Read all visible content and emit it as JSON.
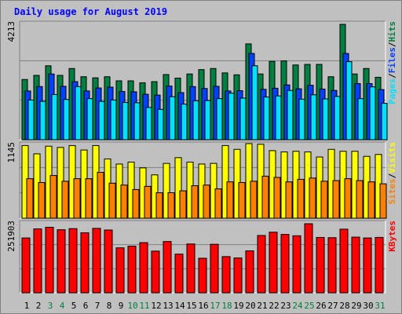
{
  "colors": {
    "hits": "#008040",
    "files": "#0040ff",
    "pages": "#00e0ff",
    "visits": "#ffff00",
    "sites": "#ff8000",
    "kbytes": "#ff0000",
    "title": "#0000ff",
    "weekend_day": "#008040",
    "separator": "#000000"
  },
  "chart_data": {
    "type": "bar",
    "title": "Daily usage for August 2019",
    "categories": [
      "1",
      "2",
      "3",
      "4",
      "5",
      "6",
      "7",
      "8",
      "9",
      "10",
      "11",
      "12",
      "13",
      "14",
      "15",
      "16",
      "17",
      "18",
      "19",
      "20",
      "21",
      "22",
      "23",
      "24",
      "25",
      "26",
      "27",
      "28",
      "29",
      "30",
      "31"
    ],
    "weekend_days": [
      "3",
      "4",
      "10",
      "11",
      "17",
      "18",
      "24",
      "25",
      "31"
    ],
    "panels": [
      {
        "name": "hits-files-pages",
        "ymax_label": "4213",
        "ymax": 4213,
        "label_parts": [
          "Pages",
          "/",
          "Files",
          "/",
          "Hits"
        ],
        "series": [
          {
            "name": "Hits",
            "values": [
              2200,
              2350,
              2700,
              2350,
              2600,
              2300,
              2260,
              2300,
              2150,
              2150,
              2080,
              2120,
              2380,
              2250,
              2400,
              2560,
              2600,
              2440,
              2370,
              3500,
              2400,
              2860,
              2880,
              2730,
              2750,
              2750,
              2300,
              4213,
              2400,
              2600,
              2280
            ]
          },
          {
            "name": "Files",
            "values": [
              1780,
              1940,
              2400,
              1950,
              2120,
              1780,
              1890,
              1920,
              1760,
              1750,
              1660,
              1630,
              1960,
              1720,
              1940,
              1870,
              1950,
              1780,
              1790,
              3150,
              1840,
              1880,
              2000,
              1860,
              1990,
              1850,
              1800,
              3150,
              2050,
              2050,
              1830
            ]
          },
          {
            "name": "Pages",
            "values": [
              1450,
              1400,
              1650,
              1470,
              1940,
              1500,
              1400,
              1450,
              1360,
              1350,
              1180,
              1110,
              1570,
              1300,
              1420,
              1430,
              1500,
              1700,
              1520,
              2700,
              1560,
              1600,
              1800,
              1480,
              1640,
              1490,
              1580,
              2850,
              1500,
              1930,
              1330
            ]
          }
        ]
      },
      {
        "name": "visits-sites",
        "ymax_label": "1145",
        "ymax": 1145,
        "label_parts": [
          "Sites",
          "/",
          "Visits"
        ],
        "series": [
          {
            "name": "Visits",
            "values": [
              1140,
              1010,
              1130,
              1110,
              1140,
              1070,
              1140,
              930,
              850,
              880,
              790,
              680,
              860,
              950,
              880,
              850,
              860,
              1140,
              1080,
              1170,
              1160,
              1060,
              1040,
              1050,
              1040,
              960,
              1080,
              1050,
              1050,
              970,
              1000
            ]
          },
          {
            "name": "Sites",
            "values": [
              620,
              560,
              670,
              580,
              620,
              620,
              720,
              550,
              520,
              450,
              500,
              400,
              400,
              430,
              510,
              520,
              460,
              570,
              560,
              580,
              660,
              640,
              570,
              610,
              630,
              580,
              590,
              620,
              590,
              570,
              540
            ]
          }
        ]
      },
      {
        "name": "kbytes",
        "ymax_label": "251903",
        "ymax": 251903,
        "label_parts": [
          "KBytes"
        ],
        "series": [
          {
            "name": "KBytes",
            "values": [
              200000,
              233000,
              239000,
              230000,
              234000,
              219000,
              235000,
              229000,
              164000,
              170000,
              183000,
              152000,
              187000,
              141000,
              178000,
              126000,
              177000,
              132000,
              127000,
              153000,
              209000,
              221000,
              213000,
              208000,
              251903,
              202000,
              201000,
              232000,
              203000,
              200000,
              202000
            ]
          }
        ]
      }
    ]
  }
}
